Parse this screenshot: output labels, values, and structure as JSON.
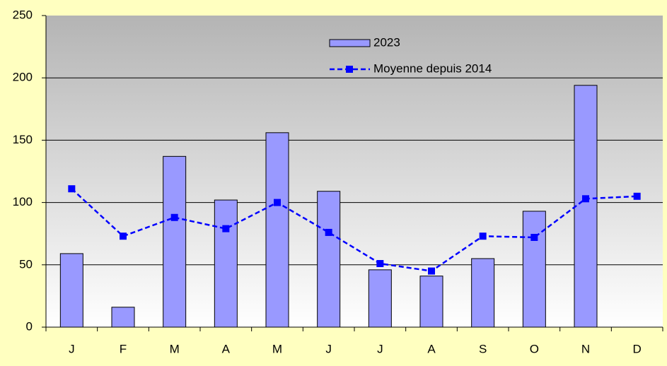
{
  "chart_data": {
    "type": "bar",
    "categories": [
      "J",
      "F",
      "M",
      "A",
      "M",
      "J",
      "J",
      "A",
      "S",
      "O",
      "N",
      "D"
    ],
    "series": [
      {
        "name": "2023",
        "type": "bar",
        "color": "#9999ff",
        "values": [
          59,
          16,
          137,
          102,
          156,
          109,
          46,
          41,
          55,
          93,
          194,
          null
        ]
      },
      {
        "name": "Moyenne depuis 2014",
        "type": "line",
        "color": "#0000ff",
        "values": [
          111,
          73,
          88,
          79,
          100,
          76,
          51,
          45,
          73,
          72,
          103,
          105
        ]
      }
    ],
    "ylim": [
      0,
      250
    ],
    "yticks": [
      0,
      50,
      100,
      150,
      200,
      250
    ],
    "grid": true,
    "legend": "top"
  }
}
